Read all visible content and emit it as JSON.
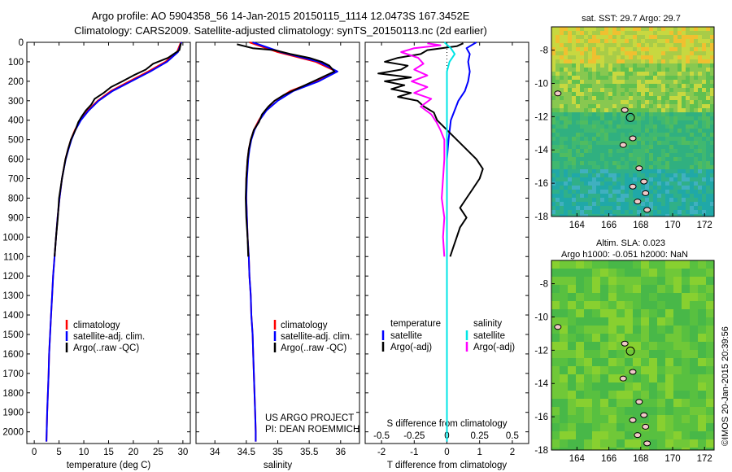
{
  "header": {
    "line1": "Argo profile: AO 5904358_56 14-Jan-2015 20150115_1114 12.0473S 167.3452E",
    "line2": "Climatology: CARS2009. Satellite-adjusted climatology: synTS_20150113.nc (2d earlier)"
  },
  "side_text": "©IMOS 20-Jan-2015 20:39:56",
  "maps": {
    "sst": {
      "title": "sat. SST: 29.7 Argo: 29.7",
      "lon_ticks": [
        "164",
        "166",
        "168",
        "170",
        "172"
      ],
      "lat_ticks": [
        "-8",
        "-10",
        "-12",
        "-14",
        "-16",
        "-18"
      ]
    },
    "sla": {
      "title1": "Altim. SLA: 0.023",
      "title2": "Argo h1000: -0.051 h2000: NaN",
      "lon_ticks": [
        "164",
        "166",
        "168",
        "170",
        "172"
      ],
      "lat_ticks": [
        "-8",
        "-10",
        "-12",
        "-14",
        "-16",
        "-18"
      ]
    },
    "argo_position": {
      "lon": 167.35,
      "lat": -12.05
    }
  },
  "panels": {
    "temperature": {
      "xlabel": "temperature (deg C)",
      "legend": [
        "climatology",
        "satellite-adj. clim.",
        "Argo(..raw -QC)"
      ]
    },
    "salinity": {
      "xlabel": "salinity",
      "legend": [
        "climatology",
        "satellite-adj. clim.",
        "Argo(..raw -QC)"
      ],
      "credit1": "US ARGO PROJECT",
      "credit2": "PI: DEAN ROEMMICH"
    },
    "difference": {
      "xlabel": "T difference from climatology",
      "top_label": "S difference from climatology",
      "legend_t_title": "temperature",
      "legend_s_title": "salinity",
      "legend_t": [
        "satellite",
        "Argo(-adj)"
      ],
      "legend_s": [
        "satellite",
        "Argo(-adj)"
      ]
    }
  },
  "colors": {
    "climatology": "#ff0000",
    "satellite_adj": "#0000ff",
    "argo": "#000000",
    "sal_satellite": "#00e5e5",
    "sal_argo": "#ff00ff"
  },
  "chart_data": [
    {
      "type": "line",
      "xlabel": "temperature (deg C)",
      "ylabel": "",
      "xlim": [
        -1.5,
        31.5
      ],
      "ylim": [
        2060,
        0
      ],
      "x_ticks": [
        0,
        5,
        10,
        15,
        20,
        25,
        30
      ],
      "y_ticks": [
        0,
        100,
        200,
        300,
        400,
        500,
        600,
        700,
        800,
        900,
        1000,
        1100,
        1200,
        1300,
        1400,
        1500,
        1600,
        1700,
        1800,
        1900,
        2000
      ],
      "series": [
        {
          "name": "climatology",
          "color": "#ff0000",
          "y": [
            0,
            50,
            100,
            150,
            200,
            250,
            300,
            350,
            400,
            450,
            500,
            550,
            600,
            700,
            800,
            900,
            1000,
            1100,
            1200,
            1300,
            1400,
            1500,
            1600,
            1700,
            1800,
            1900,
            2000,
            2050
          ],
          "x": [
            29.6,
            28.8,
            26.5,
            23.0,
            19.2,
            15.5,
            12.8,
            10.8,
            9.3,
            8.2,
            7.4,
            6.8,
            6.3,
            5.6,
            5.1,
            4.7,
            4.4,
            4.1,
            3.8,
            3.6,
            3.4,
            3.2,
            3.0,
            2.9,
            2.75,
            2.6,
            2.5,
            2.45
          ]
        },
        {
          "name": "satellite-adj. clim.",
          "color": "#0000ff",
          "y": [
            0,
            50,
            100,
            150,
            200,
            250,
            300,
            350,
            400,
            450,
            500,
            550,
            600,
            700,
            800,
            900,
            1000,
            1100,
            1200,
            1300,
            1400,
            1500,
            1600,
            1700,
            1800,
            1900,
            2000,
            2050
          ],
          "x": [
            29.7,
            29.0,
            26.8,
            23.4,
            19.6,
            15.8,
            13.0,
            11.0,
            9.4,
            8.3,
            7.5,
            6.9,
            6.35,
            5.6,
            5.1,
            4.7,
            4.4,
            4.1,
            3.8,
            3.6,
            3.4,
            3.2,
            3.0,
            2.9,
            2.75,
            2.6,
            2.5,
            2.45
          ]
        },
        {
          "name": "Argo(..raw -QC)",
          "color": "#000000",
          "y": [
            5,
            40,
            80,
            110,
            140,
            170,
            200,
            230,
            260,
            290,
            320,
            350,
            380,
            410,
            450,
            500,
            550,
            600,
            700,
            800,
            900,
            1000,
            1100
          ],
          "x": [
            29.6,
            29.3,
            27.0,
            24.0,
            22.5,
            20.0,
            17.8,
            15.5,
            14.0,
            12.2,
            11.5,
            10.4,
            9.6,
            8.9,
            8.3,
            7.4,
            6.8,
            6.3,
            5.6,
            5.0,
            4.75,
            4.4,
            4.1
          ]
        }
      ]
    },
    {
      "type": "line",
      "xlabel": "salinity",
      "xlim": [
        33.7,
        36.3
      ],
      "ylim": [
        2060,
        0
      ],
      "x_ticks": [
        34,
        34.5,
        35,
        35.5,
        36
      ],
      "series": [
        {
          "name": "climatology",
          "color": "#ff0000",
          "y": [
            0,
            50,
            100,
            150,
            200,
            250,
            300,
            350,
            400,
            450,
            500,
            550,
            600,
            700,
            800,
            900,
            1000,
            1100,
            1200,
            1300,
            1400,
            1500,
            1600,
            1700,
            1800,
            1900,
            2000,
            2050
          ],
          "x": [
            34.55,
            35.0,
            35.6,
            35.93,
            35.6,
            35.2,
            34.95,
            34.8,
            34.7,
            34.62,
            34.57,
            34.54,
            34.52,
            34.5,
            34.5,
            34.51,
            34.52,
            34.54,
            34.55,
            34.57,
            34.58,
            34.6,
            34.61,
            34.62,
            34.63,
            34.64,
            34.65,
            34.65
          ]
        },
        {
          "name": "satellite-adj. clim.",
          "color": "#0000ff",
          "y": [
            0,
            50,
            100,
            150,
            200,
            250,
            300,
            350,
            400,
            450,
            500,
            550,
            600,
            700,
            800,
            900,
            1000,
            1100,
            1200,
            1300,
            1400,
            1500,
            1600,
            1700,
            1800,
            1900,
            2000,
            2050
          ],
          "x": [
            34.6,
            35.05,
            35.65,
            35.95,
            35.65,
            35.25,
            35.0,
            34.82,
            34.71,
            34.63,
            34.58,
            34.55,
            34.53,
            34.51,
            34.5,
            34.51,
            34.52,
            34.54,
            34.55,
            34.57,
            34.58,
            34.6,
            34.61,
            34.62,
            34.63,
            34.64,
            34.65,
            34.65
          ]
        },
        {
          "name": "Argo(..raw -QC)",
          "color": "#000000",
          "y": [
            10,
            30,
            40,
            60,
            80,
            100,
            120,
            150,
            180,
            210,
            240,
            270,
            300,
            330,
            370,
            410,
            450,
            500,
            550,
            600,
            700,
            800,
            900,
            1000,
            1100
          ],
          "x": [
            34.35,
            34.6,
            34.95,
            35.2,
            35.5,
            35.7,
            35.82,
            35.9,
            35.7,
            35.5,
            35.3,
            35.1,
            34.95,
            34.85,
            34.75,
            34.7,
            34.62,
            34.57,
            34.54,
            34.52,
            34.5,
            34.49,
            34.5,
            34.52,
            34.53
          ]
        }
      ]
    },
    {
      "type": "line",
      "xlabel": "T difference from climatology",
      "x2label": "S difference from climatology",
      "xlim": [
        -2.5,
        2.5
      ],
      "x2lim": [
        -0.625,
        0.625
      ],
      "ylim": [
        2060,
        0
      ],
      "x_ticks": [
        -2,
        -1,
        0,
        1,
        2
      ],
      "x2_ticks": [
        -0.5,
        -0.25,
        0,
        0.25,
        0.5
      ],
      "series": [
        {
          "name": "satellite",
          "group": "temperature",
          "color": "#0000ff",
          "y": [
            0,
            30,
            60,
            100,
            150,
            200,
            250,
            300,
            400,
            500,
            600,
            700,
            800,
            900,
            1000,
            1100,
            2050
          ],
          "x": [
            0.9,
            0.6,
            0.7,
            0.65,
            0.7,
            0.65,
            0.55,
            0.35,
            0.12,
            0.05,
            0.0,
            0.0,
            0.0,
            0.0,
            0.0,
            0.0,
            0.0
          ]
        },
        {
          "name": "Argo(-adj)",
          "group": "temperature",
          "color": "#000000",
          "y": [
            5,
            20,
            40,
            60,
            80,
            100,
            120,
            140,
            160,
            180,
            200,
            220,
            240,
            260,
            280,
            300,
            330,
            360,
            400,
            450,
            500,
            550,
            600,
            650,
            700,
            750,
            800,
            850,
            900,
            950,
            1000,
            1050,
            1100
          ],
          "x": [
            0.5,
            0.3,
            -0.6,
            -0.8,
            -1.5,
            -1.9,
            -1.2,
            -1.4,
            -2.1,
            -1.1,
            -1.9,
            -1.3,
            -1.7,
            -1.1,
            -1.5,
            -0.9,
            -0.7,
            -0.4,
            -0.3,
            0.0,
            0.3,
            0.6,
            0.9,
            1.1,
            1.0,
            0.8,
            0.6,
            0.4,
            0.6,
            0.4,
            0.3,
            0.2,
            0.1
          ]
        },
        {
          "name": "satellite",
          "group": "salinity",
          "color": "#00e5e5",
          "y": [
            0,
            30,
            60,
            100,
            150,
            200,
            300,
            400,
            600,
            800,
            1000,
            1200,
            1500,
            2050
          ],
          "x": [
            -0.02,
            0.03,
            0.06,
            0.02,
            0.0,
            0.0,
            0.0,
            0.0,
            0.0,
            0.0,
            0.0,
            0.0,
            0.0,
            0.0
          ]
        },
        {
          "name": "Argo(-adj)",
          "group": "salinity",
          "color": "#ff00ff",
          "y": [
            5,
            15,
            30,
            50,
            80,
            110,
            140,
            170,
            200,
            230,
            260,
            290,
            330,
            370,
            410,
            450,
            500,
            600,
            700,
            800,
            900,
            1000,
            1100
          ],
          "x": [
            -0.15,
            -0.05,
            -0.25,
            -0.35,
            -0.22,
            -0.18,
            -0.25,
            -0.15,
            -0.27,
            -0.15,
            -0.25,
            -0.12,
            -0.2,
            -0.12,
            -0.08,
            -0.05,
            -0.02,
            -0.02,
            -0.03,
            -0.04,
            -0.02,
            -0.03,
            -0.02
          ]
        }
      ]
    }
  ]
}
